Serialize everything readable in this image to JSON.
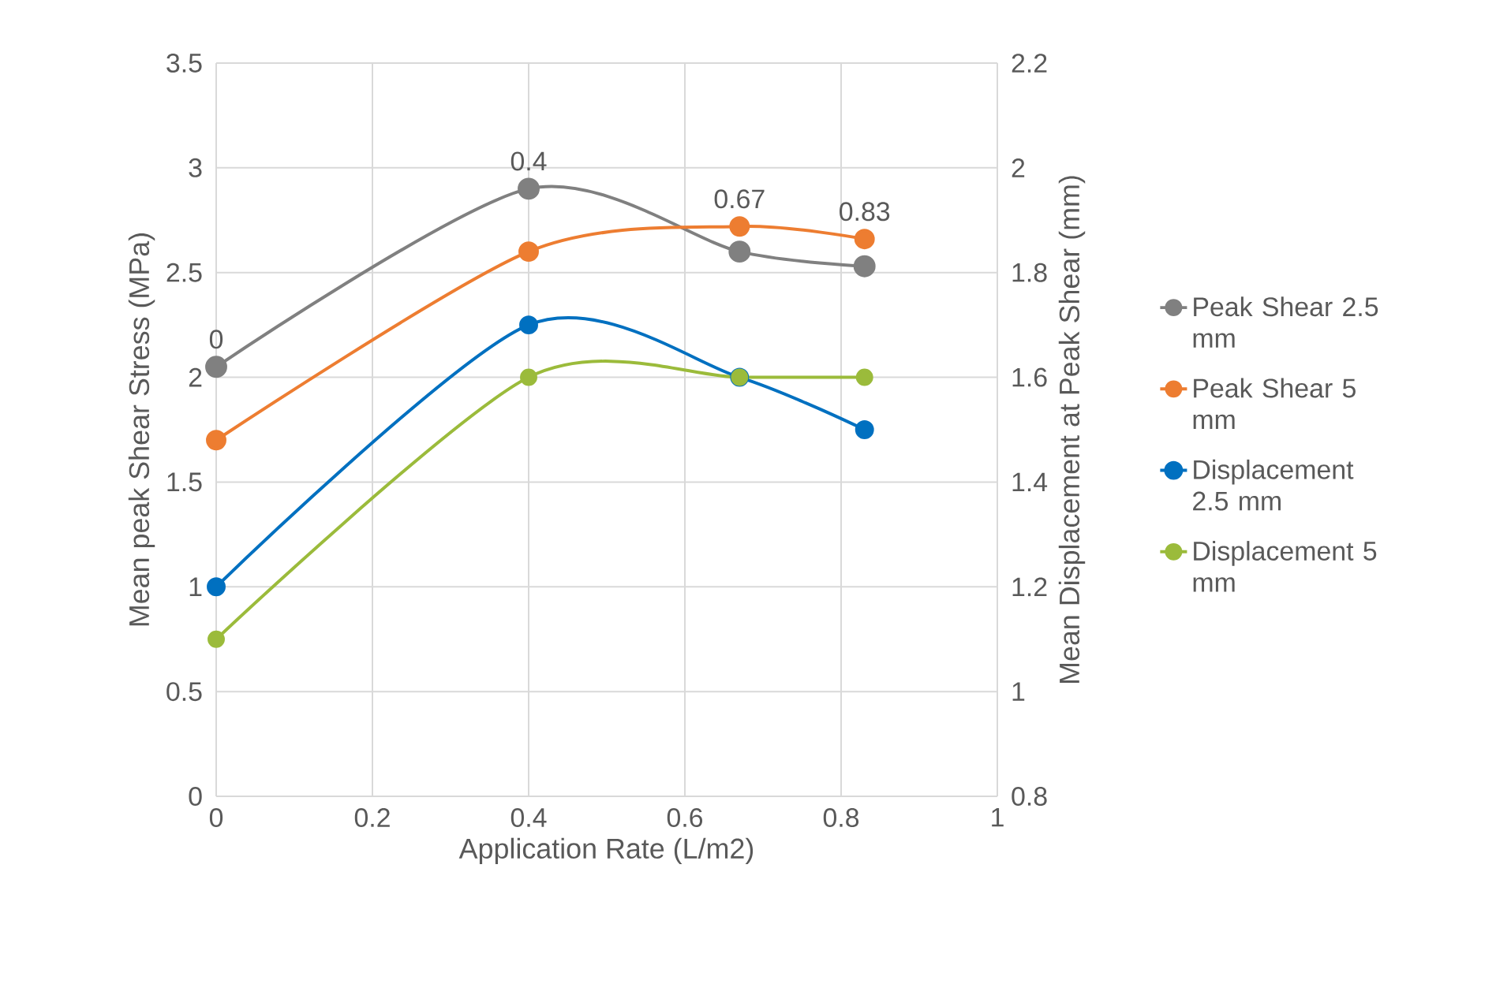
{
  "chart_data": {
    "type": "line",
    "xlabel": "Application Rate (L/m2)",
    "ylabel": "Mean peak Shear Stress (MPa)",
    "y2label": "Mean Displacement at Peak Shear (mm)",
    "x": [
      0,
      0.4,
      0.67,
      0.83
    ],
    "series": [
      {
        "name": "Peak Shear 2.5 mm",
        "color": "#808080",
        "values": [
          2.05,
          2.9,
          2.6,
          2.53
        ]
      },
      {
        "name": "Peak Shear 5 mm",
        "color": "#ed7d31",
        "values": [
          1.7,
          2.6,
          2.72,
          2.66
        ]
      },
      {
        "name": "Displacement 2.5 mm",
        "color": "#0070c0",
        "axis": "y2",
        "values": [
          1.2,
          1.7,
          1.6,
          1.5
        ]
      },
      {
        "name": "Displacement 5 mm",
        "color": "#9bbb3b",
        "axis": "y2",
        "values": [
          1.1,
          1.6,
          1.6,
          1.6
        ]
      }
    ],
    "xlim": [
      0,
      1
    ],
    "xticks": [
      0,
      0.2,
      0.4,
      0.6,
      0.8,
      1
    ],
    "ylim": [
      0,
      3.5
    ],
    "yticks": [
      0,
      0.5,
      1,
      1.5,
      2,
      2.5,
      3,
      3.5
    ],
    "y2lim": [
      0.8,
      2.2
    ],
    "y2ticks": [
      0.8,
      1,
      1.2,
      1.4,
      1.6,
      1.8,
      2,
      2.2
    ],
    "annotations": [
      {
        "text": "0",
        "x": 0,
        "y": 2.05
      },
      {
        "text": "0.4",
        "x": 0.4,
        "y": 2.9
      },
      {
        "text": "0.67",
        "x": 0.67,
        "y": 2.72
      },
      {
        "text": "0.83",
        "x": 0.83,
        "y": 2.66
      }
    ],
    "grid": true,
    "legend": "right",
    "marker": "circle",
    "line_style": "solid"
  }
}
